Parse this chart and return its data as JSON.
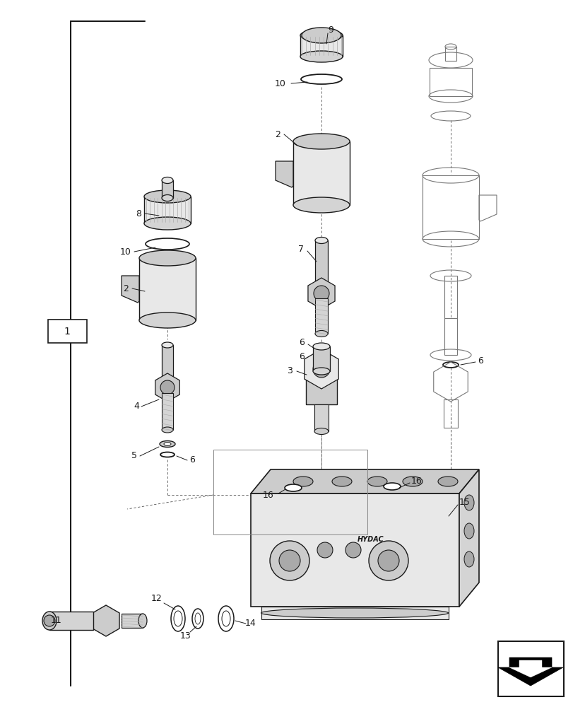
{
  "bg_color": "#ffffff",
  "line_color": "#1a1a1a",
  "fig_width": 8.12,
  "fig_height": 10.0,
  "dpi": 100,
  "lw_main": 1.2,
  "lw_thin": 0.7,
  "lw_dash": 0.6,
  "gray_light": "#e8e8e8",
  "gray_mid": "#cccccc",
  "gray_dark": "#aaaaaa",
  "gray_fill": "#d4d4d4"
}
